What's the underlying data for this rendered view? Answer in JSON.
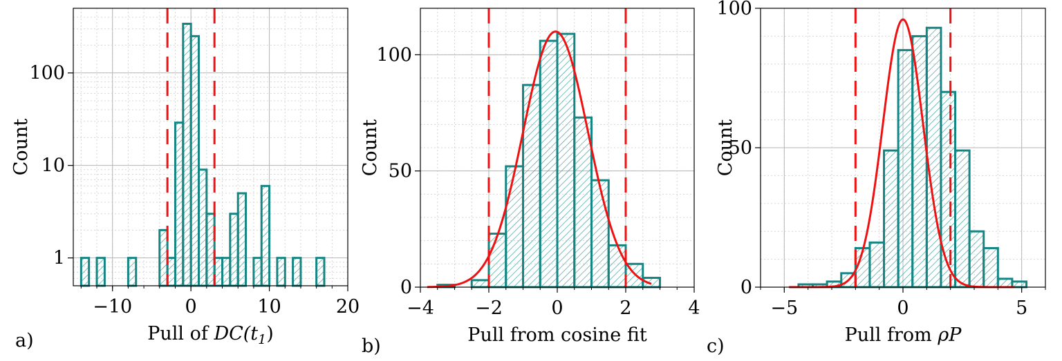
{
  "chart_data": [
    {
      "panel": "a)",
      "type": "bar",
      "yscale": "log",
      "xlabel": "Pull of ",
      "xlabel_math": "DC(t",
      "xlabel_sub": "1",
      "xlabel_close": ")",
      "ylabel": "Count",
      "xlim": [
        -15,
        20
      ],
      "ylim": [
        0.5,
        500
      ],
      "xticks": [
        -10,
        0,
        10,
        20
      ],
      "xtick_labels": [
        "−10",
        "0",
        "10",
        "20"
      ],
      "yticks": [
        1,
        10,
        100
      ],
      "ytick_labels": [
        "1",
        "10",
        "100"
      ],
      "bin_width": 1,
      "bins": [
        {
          "x": -14,
          "count": 1
        },
        {
          "x": -12,
          "count": 1
        },
        {
          "x": -8,
          "count": 1
        },
        {
          "x": -4,
          "count": 2
        },
        {
          "x": -3,
          "count": 1
        },
        {
          "x": -2,
          "count": 29
        },
        {
          "x": -1,
          "count": 340
        },
        {
          "x": 0,
          "count": 250
        },
        {
          "x": 1,
          "count": 9
        },
        {
          "x": 2,
          "count": 3
        },
        {
          "x": 3,
          "count": 1
        },
        {
          "x": 4,
          "count": 1
        },
        {
          "x": 5,
          "count": 3
        },
        {
          "x": 6,
          "count": 5
        },
        {
          "x": 8,
          "count": 1
        },
        {
          "x": 9,
          "count": 6
        },
        {
          "x": 11,
          "count": 1
        },
        {
          "x": 13,
          "count": 1
        },
        {
          "x": 16,
          "count": 1
        }
      ],
      "cut_lines": [
        -3,
        3
      ],
      "fit": null
    },
    {
      "panel": "b)",
      "type": "bar",
      "yscale": "linear",
      "xlabel": "Pull from cosine fit",
      "ylabel": "Count",
      "xlim": [
        -4,
        4
      ],
      "ylim": [
        0,
        120
      ],
      "xticks": [
        -4,
        -2,
        0,
        2,
        4
      ],
      "xtick_labels": [
        "−4",
        "−2",
        "0",
        "2",
        "4"
      ],
      "yticks": [
        0,
        50,
        100
      ],
      "ytick_labels": [
        "0",
        "50",
        "100"
      ],
      "bin_width": 0.5,
      "bins": [
        {
          "x": -3.5,
          "count": 1
        },
        {
          "x": -3.0,
          "count": 0
        },
        {
          "x": -2.5,
          "count": 3
        },
        {
          "x": -2.0,
          "count": 23
        },
        {
          "x": -1.5,
          "count": 52
        },
        {
          "x": -1.0,
          "count": 87
        },
        {
          "x": -0.5,
          "count": 106
        },
        {
          "x": 0.0,
          "count": 109
        },
        {
          "x": 0.5,
          "count": 73
        },
        {
          "x": 1.0,
          "count": 46
        },
        {
          "x": 1.5,
          "count": 18
        },
        {
          "x": 2.0,
          "count": 10
        },
        {
          "x": 2.5,
          "count": 4
        }
      ],
      "cut_lines": [
        -2,
        2
      ],
      "fit": {
        "type": "gaussian",
        "amplitude": 110,
        "mean": -0.05,
        "sigma": 0.95,
        "range": [
          -3.8,
          2.75
        ]
      }
    },
    {
      "panel": "c)",
      "type": "bar",
      "yscale": "linear",
      "xlabel": "Pull from ",
      "xlabel_math": "ρP",
      "ylabel": "Count",
      "xlim": [
        -6,
        6
      ],
      "ylim": [
        0,
        100
      ],
      "xticks": [
        -5,
        0,
        5
      ],
      "xtick_labels": [
        "−5",
        "0",
        "5"
      ],
      "yticks": [
        0,
        50,
        100
      ],
      "ytick_labels": [
        "0",
        "50",
        "100"
      ],
      "bin_width": 0.6,
      "bins": [
        {
          "x": -5.0,
          "count": 0
        },
        {
          "x": -4.4,
          "count": 1
        },
        {
          "x": -3.8,
          "count": 1
        },
        {
          "x": -3.2,
          "count": 2
        },
        {
          "x": -2.6,
          "count": 5
        },
        {
          "x": -2.0,
          "count": 14
        },
        {
          "x": -1.4,
          "count": 16
        },
        {
          "x": -0.8,
          "count": 49
        },
        {
          "x": -0.2,
          "count": 85
        },
        {
          "x": 0.4,
          "count": 90
        },
        {
          "x": 1.0,
          "count": 93
        },
        {
          "x": 1.6,
          "count": 70
        },
        {
          "x": 2.2,
          "count": 49
        },
        {
          "x": 2.8,
          "count": 20
        },
        {
          "x": 3.4,
          "count": 14
        },
        {
          "x": 4.0,
          "count": 3
        },
        {
          "x": 4.6,
          "count": 2
        }
      ],
      "cut_lines": [
        -2,
        2
      ],
      "fit": {
        "type": "gaussian",
        "amplitude": 96,
        "mean": 0.0,
        "sigma": 0.85,
        "range": [
          -4.8,
          4.7
        ]
      }
    }
  ],
  "colors": {
    "bar_edge": "#158583",
    "hatch": "#3fa39e",
    "fit": "#ee1111",
    "cut": "#ee1111",
    "grid_major": "#b5b5b5",
    "grid_minor": "#d5d5d5"
  }
}
